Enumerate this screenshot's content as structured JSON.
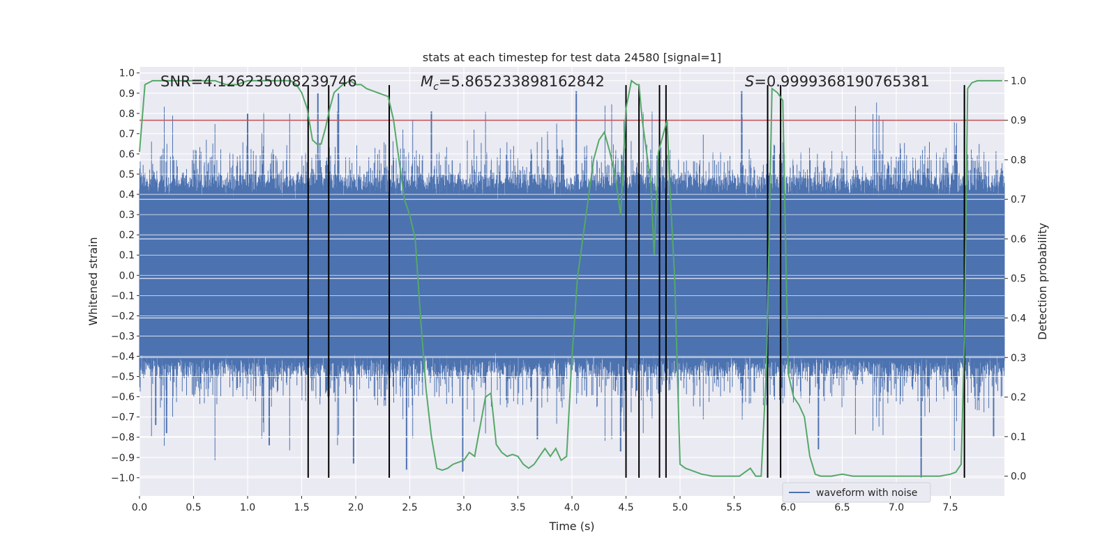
{
  "chart_data": {
    "type": "line",
    "title": "stats at each timestep for test data 24580 [signal=1]",
    "xlabel": "Time (s)",
    "ylabel_left": "Whitened strain",
    "ylabel_right": "Detection probability",
    "xlim": [
      0.0,
      8.0
    ],
    "ylim_left": [
      -1.09,
      1.03
    ],
    "ylim_right": [
      -0.05,
      1.035
    ],
    "x_ticks": [
      0.0,
      0.5,
      1.0,
      1.5,
      2.0,
      2.5,
      3.0,
      3.5,
      4.0,
      4.5,
      5.0,
      5.5,
      6.0,
      6.5,
      7.0,
      7.5
    ],
    "x_tick_labels": [
      "0.0",
      "0.5",
      "1.0",
      "1.5",
      "2.0",
      "2.5",
      "3.0",
      "3.5",
      "4.0",
      "4.5",
      "5.0",
      "5.5",
      "6.0",
      "6.5",
      "7.0",
      "7.5"
    ],
    "y_left_ticks": [
      1.0,
      0.9,
      0.8,
      0.7,
      0.6,
      0.5,
      0.4,
      0.3,
      0.2,
      0.1,
      0.0,
      -0.1,
      -0.2,
      -0.3,
      -0.4,
      -0.5,
      -0.6,
      -0.7,
      -0.8,
      -0.9,
      -1.0
    ],
    "y_left_tick_labels": [
      "1.0",
      "0.9",
      "0.8",
      "0.7",
      "0.6",
      "0.5",
      "0.4",
      "0.3",
      "0.2",
      "0.1",
      "0.0",
      "−0.1",
      "−0.2",
      "−0.3",
      "−0.4",
      "−0.5",
      "−0.6",
      "−0.7",
      "−0.8",
      "−0.9",
      "−1.0"
    ],
    "y_right_ticks": [
      1.0,
      0.9,
      0.8,
      0.7,
      0.6,
      0.5,
      0.4,
      0.3,
      0.2,
      0.1,
      0.0
    ],
    "y_right_tick_labels": [
      "1.0",
      "0.9",
      "0.8",
      "0.7",
      "0.6",
      "0.5",
      "0.4",
      "0.3",
      "0.2",
      "0.1",
      "0.0"
    ],
    "annotations": [
      "SNR=4.126235008239746",
      "M_c=5.865233898162842",
      "S=0.9999368190765381"
    ],
    "legend": {
      "entries": [
        "waveform with noise"
      ],
      "placement": "lower-right"
    },
    "threshold": {
      "value": 0.9,
      "axis": "right",
      "color": "#c44e52"
    },
    "event_lines_x": [
      1.56,
      1.75,
      2.31,
      4.5,
      4.62,
      4.81,
      4.87,
      5.81,
      5.93,
      7.63
    ],
    "event_lines_ymin": -1.0,
    "event_lines_ymax": 0.94,
    "series": [
      {
        "name": "waveform with noise",
        "style": "dense-noise",
        "color": "#4c72b0",
        "core_amplitude": 0.42,
        "peak_amplitude": 0.9,
        "spikes": [
          {
            "x": 1.0,
            "y": 0.8
          },
          {
            "x": 1.65,
            "y": 0.9
          },
          {
            "x": 1.84,
            "y": 0.9
          },
          {
            "x": 2.7,
            "y": 0.81
          },
          {
            "x": 4.04,
            "y": 0.91
          },
          {
            "x": 5.57,
            "y": 0.91
          },
          {
            "x": 7.63,
            "y": 0.91
          },
          {
            "x": 0.15,
            "y": -0.74
          },
          {
            "x": 0.25,
            "y": -0.78
          },
          {
            "x": 1.2,
            "y": -0.84
          },
          {
            "x": 1.98,
            "y": -0.93
          },
          {
            "x": 2.47,
            "y": -0.96
          },
          {
            "x": 2.99,
            "y": -0.97
          },
          {
            "x": 3.68,
            "y": -0.81
          },
          {
            "x": 4.45,
            "y": -0.87
          },
          {
            "x": 6.28,
            "y": -0.86
          },
          {
            "x": 7.23,
            "y": -1.0
          },
          {
            "x": 7.9,
            "y": -0.8
          }
        ]
      },
      {
        "name": "detection probability",
        "axis": "right",
        "color": "#55a868",
        "x": [
          0.0,
          0.05,
          0.12,
          0.2,
          0.3,
          0.5,
          0.7,
          0.8,
          0.9,
          1.0,
          1.1,
          1.2,
          1.3,
          1.4,
          1.45,
          1.5,
          1.55,
          1.6,
          1.64,
          1.68,
          1.72,
          1.76,
          1.8,
          1.88,
          1.95,
          2.0,
          2.05,
          2.1,
          2.2,
          2.3,
          2.35,
          2.4,
          2.45,
          2.5,
          2.55,
          2.6,
          2.65,
          2.7,
          2.75,
          2.8,
          2.85,
          2.9,
          2.95,
          3.0,
          3.05,
          3.1,
          3.2,
          3.25,
          3.3,
          3.35,
          3.4,
          3.45,
          3.5,
          3.55,
          3.6,
          3.65,
          3.7,
          3.75,
          3.8,
          3.85,
          3.9,
          3.95,
          4.0,
          4.05,
          4.1,
          4.15,
          4.2,
          4.25,
          4.3,
          4.35,
          4.4,
          4.45,
          4.5,
          4.55,
          4.6,
          4.62,
          4.65,
          4.7,
          4.73,
          4.76,
          4.8,
          4.84,
          4.88,
          4.9,
          4.95,
          5.0,
          5.05,
          5.1,
          5.15,
          5.2,
          5.3,
          5.4,
          5.5,
          5.55,
          5.6,
          5.65,
          5.7,
          5.75,
          5.8,
          5.85,
          5.9,
          5.95,
          6.0,
          6.05,
          6.1,
          6.15,
          6.2,
          6.25,
          6.3,
          6.4,
          6.5,
          6.6,
          6.7,
          6.8,
          6.9,
          7.0,
          7.1,
          7.2,
          7.3,
          7.4,
          7.5,
          7.55,
          7.6,
          7.63,
          7.66,
          7.7,
          7.75,
          7.8,
          7.9,
          7.98
        ],
        "values": [
          0.82,
          0.99,
          1.0,
          1.0,
          1.0,
          1.0,
          1.0,
          0.99,
          0.99,
          1.0,
          1.0,
          1.0,
          1.0,
          1.0,
          0.99,
          0.97,
          0.93,
          0.85,
          0.84,
          0.84,
          0.88,
          0.93,
          0.97,
          0.99,
          1.0,
          0.99,
          0.99,
          0.98,
          0.97,
          0.96,
          0.9,
          0.8,
          0.7,
          0.66,
          0.6,
          0.4,
          0.22,
          0.1,
          0.02,
          0.015,
          0.02,
          0.03,
          0.035,
          0.04,
          0.06,
          0.05,
          0.2,
          0.21,
          0.08,
          0.06,
          0.05,
          0.055,
          0.05,
          0.03,
          0.02,
          0.03,
          0.05,
          0.07,
          0.05,
          0.07,
          0.04,
          0.05,
          0.3,
          0.5,
          0.6,
          0.7,
          0.8,
          0.85,
          0.87,
          0.82,
          0.76,
          0.66,
          0.93,
          1.0,
          0.99,
          0.99,
          0.9,
          0.8,
          0.74,
          0.56,
          0.82,
          0.86,
          0.9,
          0.76,
          0.5,
          0.03,
          0.02,
          0.015,
          0.01,
          0.005,
          0.0,
          0.0,
          0.0,
          0.0,
          0.01,
          0.02,
          0.0,
          0.0,
          0.28,
          0.98,
          0.97,
          0.95,
          0.26,
          0.2,
          0.18,
          0.15,
          0.05,
          0.005,
          0.0,
          0.0,
          0.005,
          0.0,
          0.0,
          0.0,
          0.0,
          0.0,
          0.0,
          0.0,
          0.0,
          0.0,
          0.005,
          0.01,
          0.03,
          0.35,
          0.98,
          0.995,
          1.0,
          1.0,
          1.0,
          1.0
        ]
      }
    ]
  }
}
